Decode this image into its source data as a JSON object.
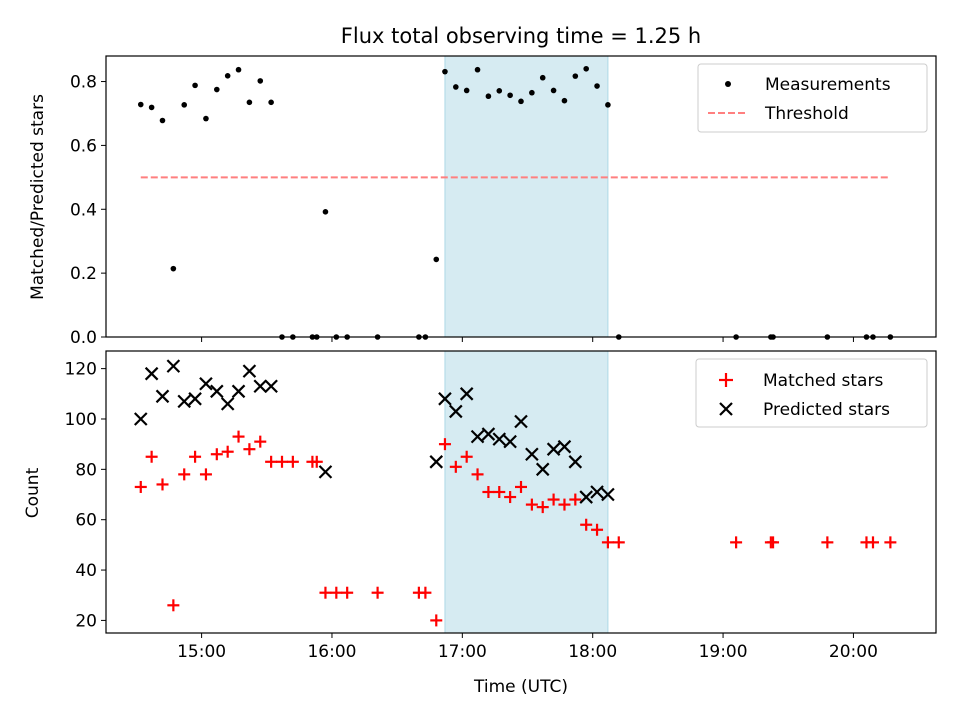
{
  "chart_data": [
    {
      "type": "scatter",
      "title": "Flux total observing time = 1.25 h",
      "xlabel": "",
      "ylabel": "Matched/Predicted stars",
      "xlim": [
        "14:16",
        "20:38"
      ],
      "ylim": [
        0,
        0.88
      ],
      "yticks": [
        0.0,
        0.2,
        0.4,
        0.6,
        0.8
      ],
      "yticklabels": [
        "0.0",
        "0.2",
        "0.4",
        "0.6",
        "0.8"
      ],
      "grid": false,
      "legend": "top-right",
      "shaded_span": {
        "start": "16:52",
        "end": "18:07",
        "color": "#add8e6"
      },
      "series": [
        {
          "name": "Measurements",
          "marker": "dot",
          "color": "#000000",
          "points": [
            [
              "14:32",
              0.728
            ],
            [
              "14:37",
              0.719
            ],
            [
              "14:42",
              0.678
            ],
            [
              "14:47",
              0.214
            ],
            [
              "14:52",
              0.727
            ],
            [
              "14:57",
              0.788
            ],
            [
              "15:02",
              0.684
            ],
            [
              "15:07",
              0.775
            ],
            [
              "15:12",
              0.818
            ],
            [
              "15:17",
              0.837
            ],
            [
              "15:22",
              0.735
            ],
            [
              "15:27",
              0.802
            ],
            [
              "15:32",
              0.735
            ],
            [
              "15:37",
              0.0
            ],
            [
              "15:42",
              0.0
            ],
            [
              "15:51",
              0.0
            ],
            [
              "15:53",
              0.0
            ],
            [
              "15:57",
              0.392
            ],
            [
              "16:02",
              0.0
            ],
            [
              "16:07",
              0.0
            ],
            [
              "16:21",
              0.0
            ],
            [
              "16:40",
              0.0
            ],
            [
              "16:43",
              0.0
            ],
            [
              "16:48",
              0.243
            ],
            [
              "16:52",
              0.831
            ],
            [
              "16:57",
              0.783
            ],
            [
              "17:02",
              0.772
            ],
            [
              "17:07",
              0.837
            ],
            [
              "17:12",
              0.754
            ],
            [
              "17:17",
              0.771
            ],
            [
              "17:22",
              0.757
            ],
            [
              "17:27",
              0.738
            ],
            [
              "17:32",
              0.765
            ],
            [
              "17:37",
              0.812
            ],
            [
              "17:42",
              0.772
            ],
            [
              "17:47",
              0.74
            ],
            [
              "17:52",
              0.817
            ],
            [
              "17:57",
              0.84
            ],
            [
              "18:02",
              0.786
            ],
            [
              "18:07",
              0.727
            ],
            [
              "18:12",
              0.0
            ],
            [
              "19:06",
              0.0
            ],
            [
              "19:22",
              0.0
            ],
            [
              "19:23",
              0.0
            ],
            [
              "19:48",
              0.0
            ],
            [
              "20:06",
              0.0
            ],
            [
              "20:09",
              0.0
            ],
            [
              "20:17",
              0.0
            ]
          ]
        },
        {
          "name": "Threshold",
          "marker": "dashed-line",
          "color": "#ff7f7f",
          "points": [
            [
              "14:32",
              0.5
            ],
            [
              "20:17",
              0.5
            ]
          ]
        }
      ]
    },
    {
      "type": "scatter",
      "title": "",
      "xlabel": "Time (UTC)",
      "ylabel": "Count",
      "xlim": [
        "14:16",
        "20:38"
      ],
      "ylim": [
        15,
        127
      ],
      "yticks": [
        20,
        40,
        60,
        80,
        100,
        120
      ],
      "yticklabels": [
        "20",
        "40",
        "60",
        "80",
        "100",
        "120"
      ],
      "xticks": [
        "15:00",
        "16:00",
        "17:00",
        "18:00",
        "19:00",
        "20:00"
      ],
      "xticklabels": [
        "15:00",
        "16:00",
        "17:00",
        "18:00",
        "19:00",
        "20:00"
      ],
      "grid": false,
      "legend": "top-right",
      "shaded_span": {
        "start": "16:52",
        "end": "18:07",
        "color": "#add8e6"
      },
      "series": [
        {
          "name": "Matched stars",
          "marker": "plus",
          "color": "#ff0000",
          "points": [
            [
              "14:32",
              73
            ],
            [
              "14:37",
              85
            ],
            [
              "14:42",
              74
            ],
            [
              "14:47",
              26
            ],
            [
              "14:52",
              78
            ],
            [
              "14:57",
              85
            ],
            [
              "15:02",
              78
            ],
            [
              "15:07",
              86
            ],
            [
              "15:12",
              87
            ],
            [
              "15:17",
              93
            ],
            [
              "15:22",
              88
            ],
            [
              "15:27",
              91
            ],
            [
              "15:32",
              83
            ],
            [
              "15:37",
              83
            ],
            [
              "15:42",
              83
            ],
            [
              "15:51",
              83
            ],
            [
              "15:53",
              83
            ],
            [
              "15:57",
              31
            ],
            [
              "16:02",
              31
            ],
            [
              "16:07",
              31
            ],
            [
              "16:21",
              31
            ],
            [
              "16:40",
              31
            ],
            [
              "16:43",
              31
            ],
            [
              "16:48",
              20
            ],
            [
              "16:52",
              90
            ],
            [
              "16:57",
              81
            ],
            [
              "17:02",
              85
            ],
            [
              "17:07",
              78
            ],
            [
              "17:12",
              71
            ],
            [
              "17:17",
              71
            ],
            [
              "17:22",
              69
            ],
            [
              "17:27",
              73
            ],
            [
              "17:32",
              66
            ],
            [
              "17:37",
              65
            ],
            [
              "17:42",
              68
            ],
            [
              "17:47",
              66
            ],
            [
              "17:52",
              68
            ],
            [
              "17:57",
              58
            ],
            [
              "18:02",
              56
            ],
            [
              "18:07",
              51
            ],
            [
              "18:12",
              51
            ],
            [
              "19:06",
              51
            ],
            [
              "19:22",
              51
            ],
            [
              "19:23",
              51
            ],
            [
              "19:48",
              51
            ],
            [
              "20:06",
              51
            ],
            [
              "20:09",
              51
            ],
            [
              "20:17",
              51
            ]
          ]
        },
        {
          "name": "Predicted stars",
          "marker": "x",
          "color": "#000000",
          "points": [
            [
              "14:32",
              100
            ],
            [
              "14:37",
              118
            ],
            [
              "14:42",
              109
            ],
            [
              "14:47",
              121
            ],
            [
              "14:52",
              107
            ],
            [
              "14:57",
              108
            ],
            [
              "15:02",
              114
            ],
            [
              "15:07",
              111
            ],
            [
              "15:12",
              106
            ],
            [
              "15:17",
              111
            ],
            [
              "15:22",
              119
            ],
            [
              "15:27",
              113
            ],
            [
              "15:32",
              113
            ],
            [
              "15:57",
              79
            ],
            [
              "16:48",
              83
            ],
            [
              "16:52",
              108
            ],
            [
              "16:57",
              103
            ],
            [
              "17:02",
              110
            ],
            [
              "17:07",
              93
            ],
            [
              "17:12",
              94
            ],
            [
              "17:17",
              92
            ],
            [
              "17:22",
              91
            ],
            [
              "17:27",
              99
            ],
            [
              "17:32",
              86
            ],
            [
              "17:37",
              80
            ],
            [
              "17:42",
              88
            ],
            [
              "17:47",
              89
            ],
            [
              "17:52",
              83
            ],
            [
              "17:57",
              69
            ],
            [
              "18:02",
              71
            ],
            [
              "18:07",
              70
            ]
          ]
        }
      ]
    }
  ]
}
